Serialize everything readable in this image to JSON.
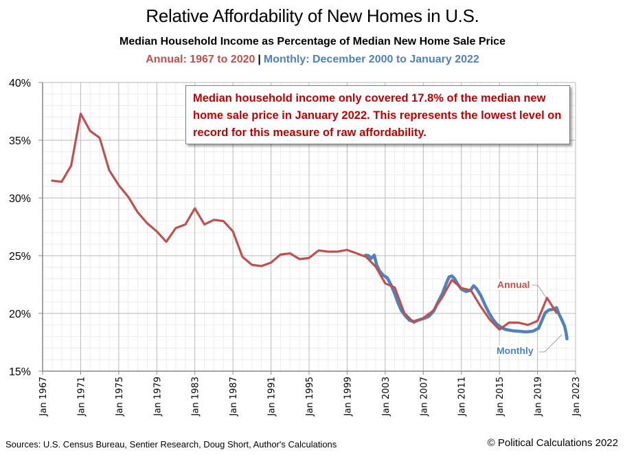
{
  "header": {
    "title": "Relative Affordability of New Homes in U.S.",
    "subtitle": "Median Household Income as Percentage of Median New Home Sale Price",
    "annual_range": "Annual: 1967 to 2020",
    "separator": "|",
    "monthly_range": "Monthly: December 2000 to January 2022"
  },
  "annotation": "Median household income only covered 17.8% of the median new home sale price in January 2022. This represents the lowest level on record for this measure of raw affordability.",
  "footer": {
    "sources": "Sources: U.S. Census Bureau, Sentier Research, Doug Short, Author's Calculations",
    "copyright": "© Political Calculations 2022"
  },
  "colors": {
    "annual": "#C0504D",
    "monthly": "#4F81BD",
    "annotation_text": "#C00000"
  },
  "chart_data": {
    "type": "line",
    "title": "Relative Affordability of New Homes in U.S.",
    "xlabel": "",
    "ylabel": "",
    "xlim": [
      1967,
      2023
    ],
    "ylim": [
      15,
      40
    ],
    "grid": true,
    "y_ticks": [
      40,
      35,
      30,
      25,
      20,
      15
    ],
    "y_tick_labels": [
      "40%",
      "35%",
      "30%",
      "25%",
      "20%",
      "15%"
    ],
    "x_ticks": [
      1967,
      1971,
      1975,
      1979,
      1983,
      1987,
      1991,
      1995,
      1999,
      2003,
      2007,
      2011,
      2015,
      2019,
      2023
    ],
    "x_tick_labels": [
      "Jan 1967",
      "Jan 1971",
      "Jan 1975",
      "Jan 1979",
      "Jan 1983",
      "Jan 1987",
      "Jan 1991",
      "Jan 1995",
      "Jan 1999",
      "Jan 2003",
      "Jan 2007",
      "Jan 2011",
      "Jan 2015",
      "Jan 2019",
      "Jan 2023"
    ],
    "series": [
      {
        "name": "Annual",
        "label": "Annual",
        "x": [
          1968,
          1969,
          1970,
          1971,
          1972,
          1973,
          1974,
          1975,
          1976,
          1977,
          1978,
          1979,
          1980,
          1981,
          1982,
          1983,
          1984,
          1985,
          1986,
          1987,
          1988,
          1989,
          1990,
          1991,
          1992,
          1993,
          1994,
          1995,
          1996,
          1997,
          1998,
          1999,
          2000,
          2001,
          2002,
          2003,
          2004,
          2005,
          2006,
          2007,
          2008,
          2009,
          2010,
          2011,
          2012,
          2013,
          2014,
          2015,
          2016,
          2017,
          2018,
          2019,
          2020,
          2021
        ],
        "y": [
          31.5,
          31.4,
          32.8,
          37.3,
          35.8,
          35.2,
          32.4,
          31.1,
          30.1,
          28.75,
          27.8,
          27.1,
          26.2,
          27.4,
          27.7,
          29.1,
          27.7,
          28.1,
          28.0,
          27.1,
          24.9,
          24.2,
          24.1,
          24.4,
          25.1,
          25.2,
          24.7,
          24.8,
          25.45,
          25.35,
          25.35,
          25.5,
          25.2,
          24.9,
          24.05,
          22.6,
          22.25,
          20.05,
          19.2,
          19.6,
          20.2,
          21.4,
          22.9,
          22.2,
          22.0,
          20.65,
          19.45,
          18.6,
          19.2,
          19.2,
          19.0,
          19.35,
          21.35,
          20.05
        ]
      },
      {
        "name": "Monthly",
        "label": "Monthly",
        "x": [
          2000.95,
          2001.25,
          2001.5,
          2001.85,
          2002.1,
          2002.4,
          2002.8,
          2003.2,
          2003.6,
          2004.0,
          2004.35,
          2004.7,
          2005.1,
          2005.55,
          2006.05,
          2006.6,
          2007.2,
          2007.6,
          2008.1,
          2008.5,
          2009.0,
          2009.35,
          2009.7,
          2010.0,
          2010.3,
          2010.65,
          2011.0,
          2011.5,
          2011.95,
          2012.3,
          2012.6,
          2013.05,
          2013.45,
          2013.9,
          2014.35,
          2014.75,
          2015.25,
          2015.7,
          2016.4,
          2017.1,
          2017.8,
          2018.5,
          2019.1,
          2019.45,
          2019.8,
          2020.2,
          2020.65,
          2021.0,
          2021.2,
          2021.55,
          2021.85,
          2022.0,
          2022.1
        ],
        "y": [
          25.05,
          25.0,
          24.75,
          25.05,
          24.2,
          23.7,
          23.3,
          23.1,
          22.5,
          21.7,
          20.9,
          20.25,
          19.8,
          19.4,
          19.3,
          19.45,
          19.6,
          19.75,
          20.2,
          20.9,
          21.7,
          22.45,
          23.15,
          23.25,
          23.0,
          22.5,
          22.1,
          21.9,
          22.0,
          22.4,
          22.15,
          21.55,
          20.8,
          20.05,
          19.45,
          19.05,
          18.75,
          18.6,
          18.5,
          18.45,
          18.4,
          18.45,
          18.7,
          19.35,
          20.05,
          20.3,
          20.35,
          20.5,
          20.05,
          19.45,
          18.9,
          18.35,
          17.8
        ]
      }
    ],
    "annotations": [
      "Median household income only covered 17.8% of the median new home sale price in January 2022. This represents the lowest level on record for this measure of raw affordability."
    ],
    "legend": "inline labels near line ends (right)"
  }
}
